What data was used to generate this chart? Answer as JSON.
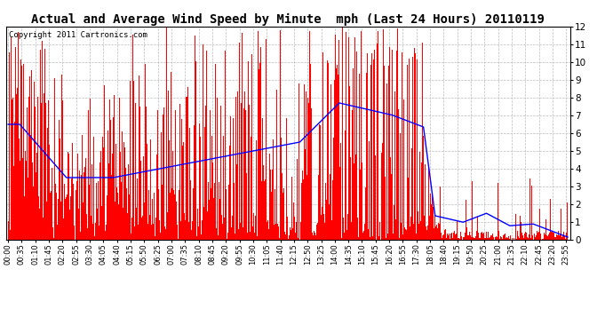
{
  "title": "Actual and Average Wind Speed by Minute  mph (Last 24 Hours) 20110119",
  "copyright": "Copyright 2011 Cartronics.com",
  "ylim": [
    0,
    12.0
  ],
  "yticks": [
    0.0,
    1.0,
    2.0,
    3.0,
    4.0,
    5.0,
    6.0,
    7.0,
    8.0,
    9.0,
    10.0,
    11.0,
    12.0
  ],
  "bar_color": "#FF0000",
  "line_color": "#0000FF",
  "background_color": "#FFFFFF",
  "grid_color": "#BBBBBB",
  "title_fontsize": 10,
  "copyright_fontsize": 6.5,
  "xtick_labels": [
    "00:00",
    "00:35",
    "01:10",
    "01:45",
    "02:20",
    "02:55",
    "03:30",
    "04:05",
    "04:40",
    "05:15",
    "05:50",
    "06:25",
    "07:00",
    "07:35",
    "08:10",
    "08:45",
    "09:20",
    "09:55",
    "10:30",
    "11:05",
    "11:40",
    "12:15",
    "12:50",
    "13:25",
    "14:00",
    "14:35",
    "15:10",
    "15:45",
    "16:20",
    "16:55",
    "17:30",
    "18:05",
    "18:40",
    "19:15",
    "19:50",
    "20:25",
    "21:00",
    "21:35",
    "22:10",
    "22:45",
    "23:20",
    "23:55"
  ]
}
